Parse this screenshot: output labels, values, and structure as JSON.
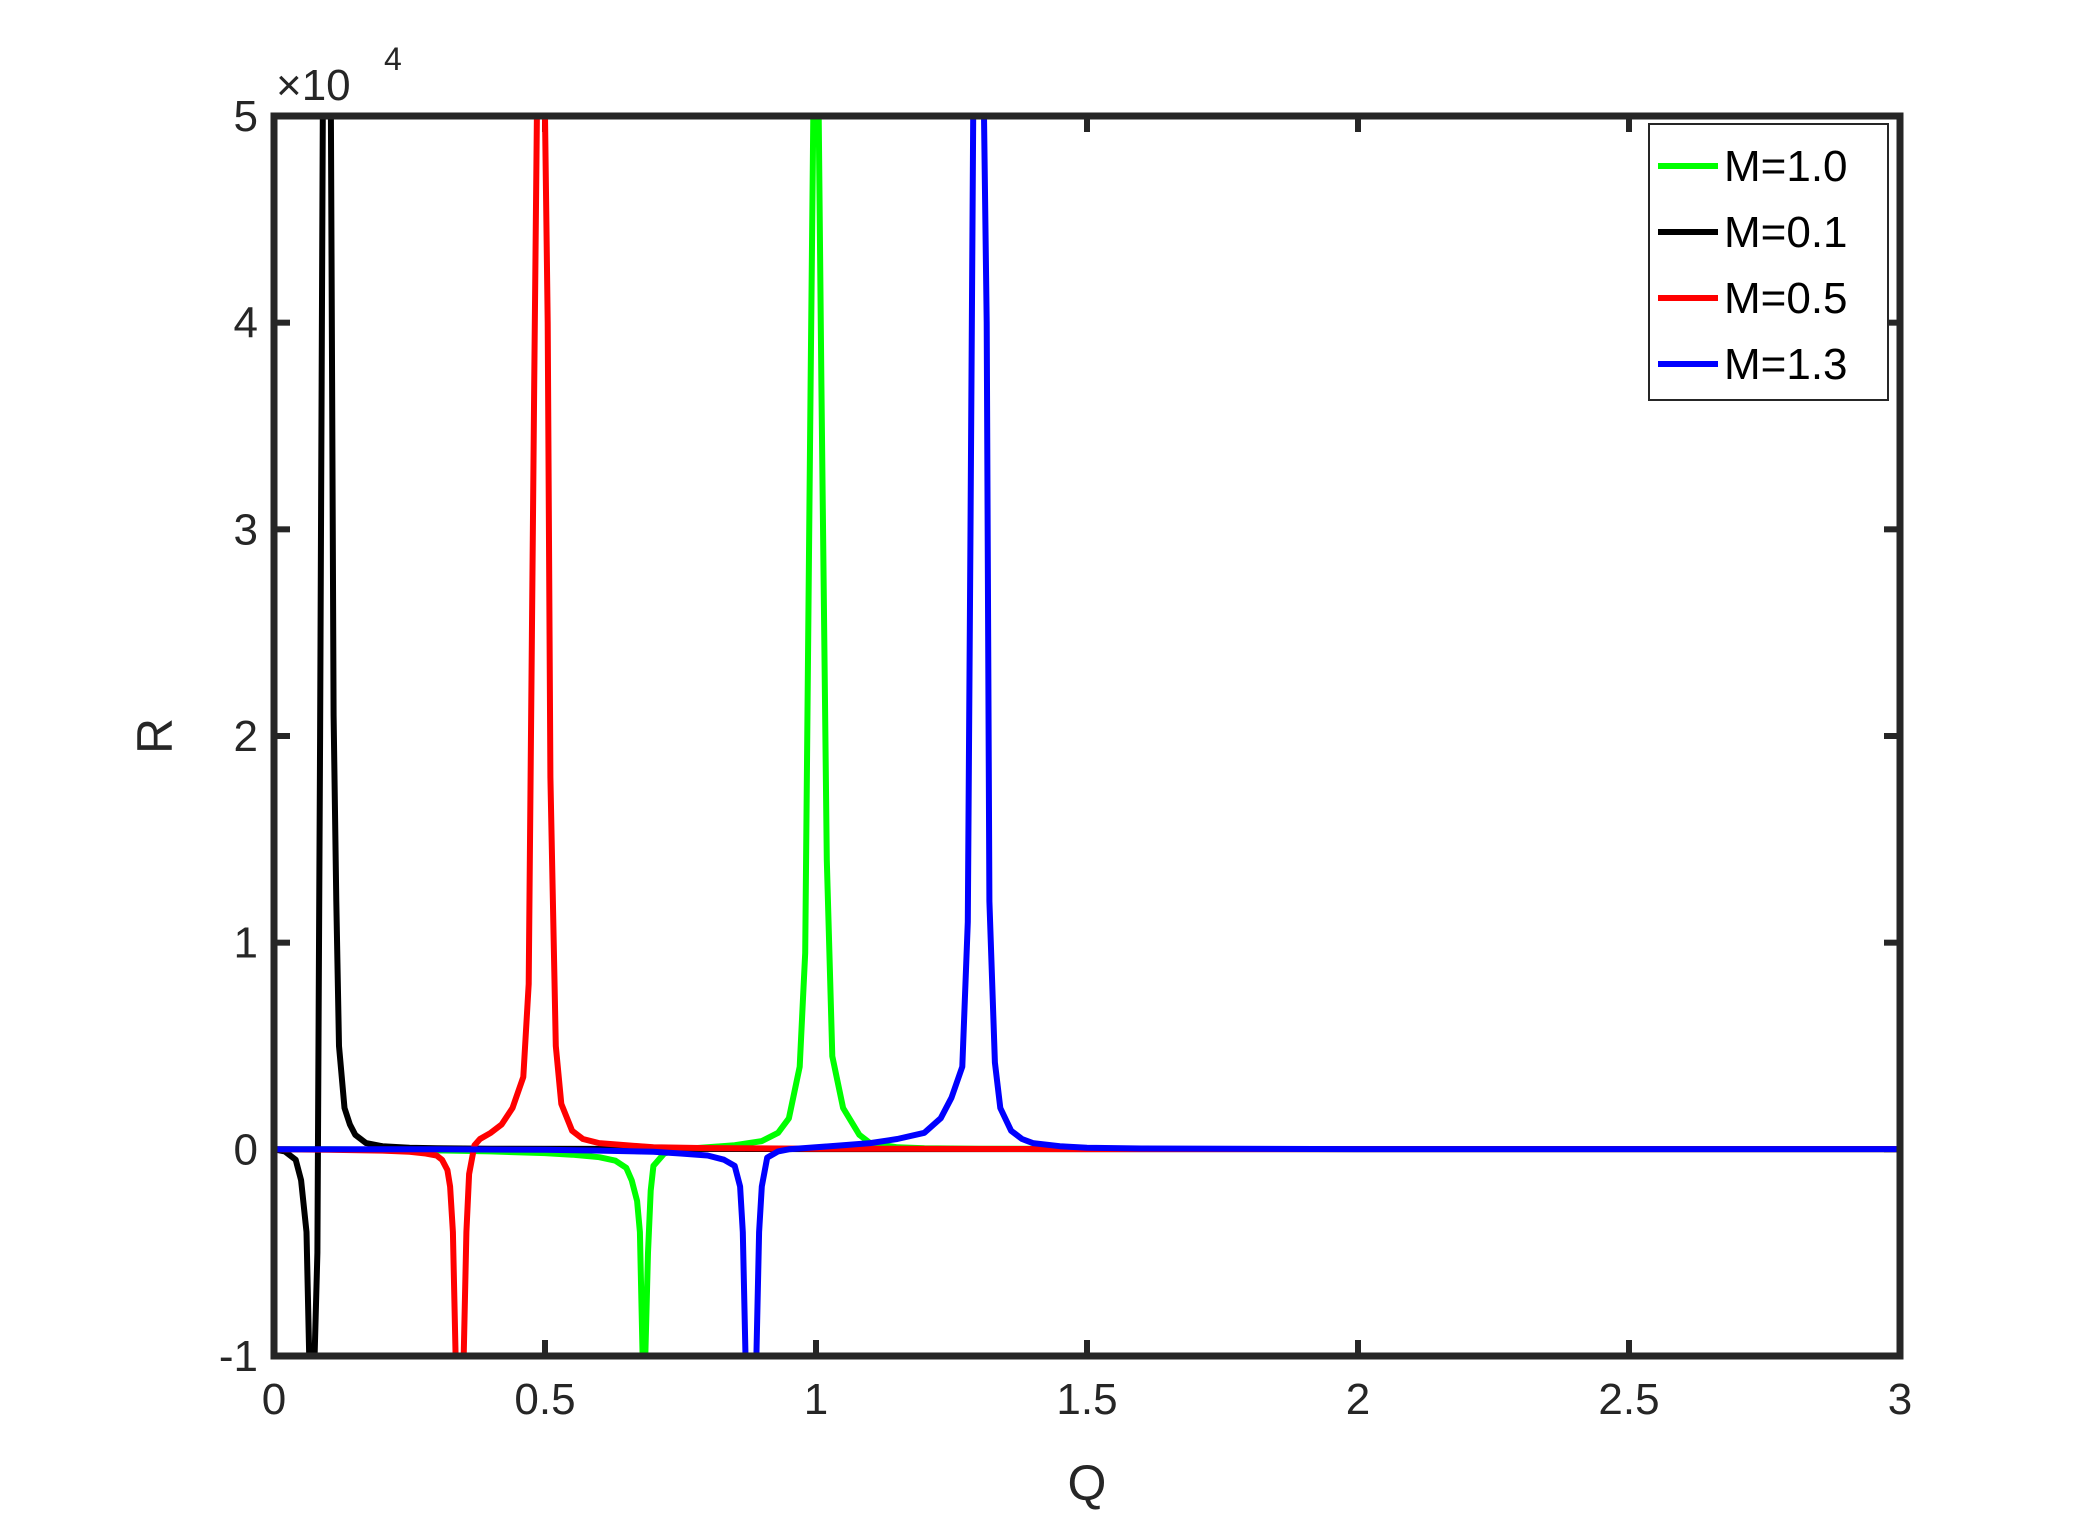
{
  "chart_data": {
    "type": "line",
    "xlabel": "Q",
    "ylabel": "R",
    "xlim": [
      0,
      3
    ],
    "ylim": [
      -10000,
      50000
    ],
    "y_exponent_label": {
      "base": "×10",
      "exponent": "4"
    },
    "xticks": [
      0,
      0.5,
      1,
      1.5,
      2,
      2.5,
      3
    ],
    "xtick_labels": [
      "0",
      "0.5",
      "1",
      "1.5",
      "2",
      "2.5",
      "3"
    ],
    "yticks": [
      -10000,
      0,
      10000,
      20000,
      30000,
      40000,
      50000
    ],
    "ytick_labels": [
      "-1",
      "0",
      "1",
      "2",
      "3",
      "4",
      "5"
    ],
    "grid": false,
    "legend_position": "top-right",
    "series": [
      {
        "name": "M=1.0",
        "color": "#00ff00",
        "x": [
          0,
          0.1,
          0.2,
          0.3,
          0.4,
          0.5,
          0.55,
          0.6,
          0.63,
          0.65,
          0.66,
          0.67,
          0.675,
          0.68,
          0.685,
          0.69,
          0.695,
          0.7,
          0.72,
          0.75,
          0.8,
          0.85,
          0.9,
          0.93,
          0.95,
          0.97,
          0.98,
          0.99,
          0.995,
          1.0,
          1.005,
          1.01,
          1.02,
          1.03,
          1.05,
          1.08,
          1.1,
          1.15,
          1.2,
          1.3,
          1.5,
          2.0,
          3.0
        ],
        "y": [
          0,
          0,
          -20,
          -50,
          -100,
          -180,
          -260,
          -380,
          -550,
          -900,
          -1500,
          -2500,
          -4000,
          -10000,
          -10000,
          -5000,
          -2000,
          -800,
          -200,
          0,
          100,
          200,
          400,
          800,
          1500,
          4000,
          9500,
          37000,
          50000,
          50000,
          50000,
          37000,
          14000,
          4500,
          2000,
          700,
          300,
          100,
          50,
          30,
          20,
          10,
          10
        ]
      },
      {
        "name": "M=0.1",
        "color": "#000000",
        "x": [
          0,
          0.02,
          0.04,
          0.05,
          0.06,
          0.065,
          0.07,
          0.075,
          0.08,
          0.085,
          0.09,
          0.1,
          0.105,
          0.11,
          0.115,
          0.12,
          0.13,
          0.14,
          0.15,
          0.17,
          0.2,
          0.25,
          0.3,
          0.4,
          0.6,
          1.0,
          1.5,
          2.0,
          3.0
        ],
        "y": [
          0,
          -100,
          -500,
          -1500,
          -4000,
          -10000,
          -10000,
          -10000,
          -5000,
          20000,
          50000,
          50000,
          50000,
          21000,
          12000,
          5000,
          2000,
          1200,
          700,
          300,
          150,
          80,
          50,
          30,
          20,
          10,
          10,
          10,
          10
        ]
      },
      {
        "name": "M=0.5",
        "color": "#ff0000",
        "x": [
          0,
          0.1,
          0.2,
          0.25,
          0.28,
          0.3,
          0.31,
          0.32,
          0.325,
          0.33,
          0.335,
          0.34,
          0.345,
          0.35,
          0.355,
          0.36,
          0.37,
          0.38,
          0.4,
          0.42,
          0.44,
          0.46,
          0.47,
          0.48,
          0.485,
          0.49,
          0.495,
          0.5,
          0.505,
          0.51,
          0.52,
          0.53,
          0.55,
          0.57,
          0.6,
          0.7,
          0.8,
          1.0,
          1.5,
          2.0,
          3.0
        ],
        "y": [
          0,
          -20,
          -60,
          -120,
          -200,
          -300,
          -500,
          -1000,
          -1800,
          -4000,
          -10000,
          -10000,
          -10000,
          -10000,
          -4000,
          -1200,
          200,
          500,
          800,
          1200,
          2000,
          3500,
          8000,
          37000,
          50000,
          50000,
          50000,
          50000,
          40000,
          18000,
          5000,
          2200,
          900,
          500,
          300,
          100,
          60,
          30,
          10,
          10,
          10
        ]
      },
      {
        "name": "M=1.3",
        "color": "#0000ff",
        "x": [
          0,
          0.3,
          0.5,
          0.6,
          0.7,
          0.75,
          0.8,
          0.83,
          0.85,
          0.86,
          0.865,
          0.87,
          0.875,
          0.88,
          0.885,
          0.89,
          0.895,
          0.9,
          0.91,
          0.93,
          0.95,
          1.0,
          1.05,
          1.1,
          1.15,
          1.2,
          1.23,
          1.25,
          1.27,
          1.28,
          1.285,
          1.29,
          1.295,
          1.3,
          1.31,
          1.315,
          1.32,
          1.33,
          1.34,
          1.36,
          1.38,
          1.4,
          1.45,
          1.5,
          1.6,
          2.0,
          3.0
        ],
        "y": [
          0,
          0,
          -20,
          -60,
          -120,
          -200,
          -300,
          -500,
          -800,
          -1800,
          -4000,
          -10000,
          -10000,
          -10000,
          -10000,
          -10000,
          -4000,
          -1800,
          -400,
          -100,
          0,
          100,
          200,
          300,
          500,
          800,
          1500,
          2500,
          4000,
          11000,
          30000,
          50000,
          50000,
          50000,
          50000,
          40000,
          12000,
          4200,
          2000,
          900,
          500,
          300,
          150,
          80,
          40,
          10,
          10
        ]
      }
    ]
  }
}
